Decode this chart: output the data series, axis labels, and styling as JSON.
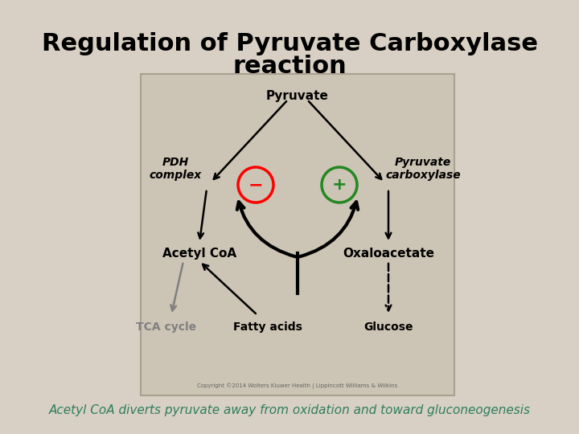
{
  "background_color": "#d8d0c4",
  "title_line1": "Regulation of Pyruvate Carboxylase",
  "title_line2": "reaction",
  "title_fontsize": 22,
  "subtitle": "Acetyl CoA diverts pyruvate away from oxidation and toward gluconeogenesis",
  "subtitle_fontsize": 11,
  "subtitle_color": "#2e7d5e",
  "box_bg": "#ccc4b4",
  "copyright": "Copyright ©2014 Wolters Kluwer Health | Lippincott Williams & Wilkins"
}
